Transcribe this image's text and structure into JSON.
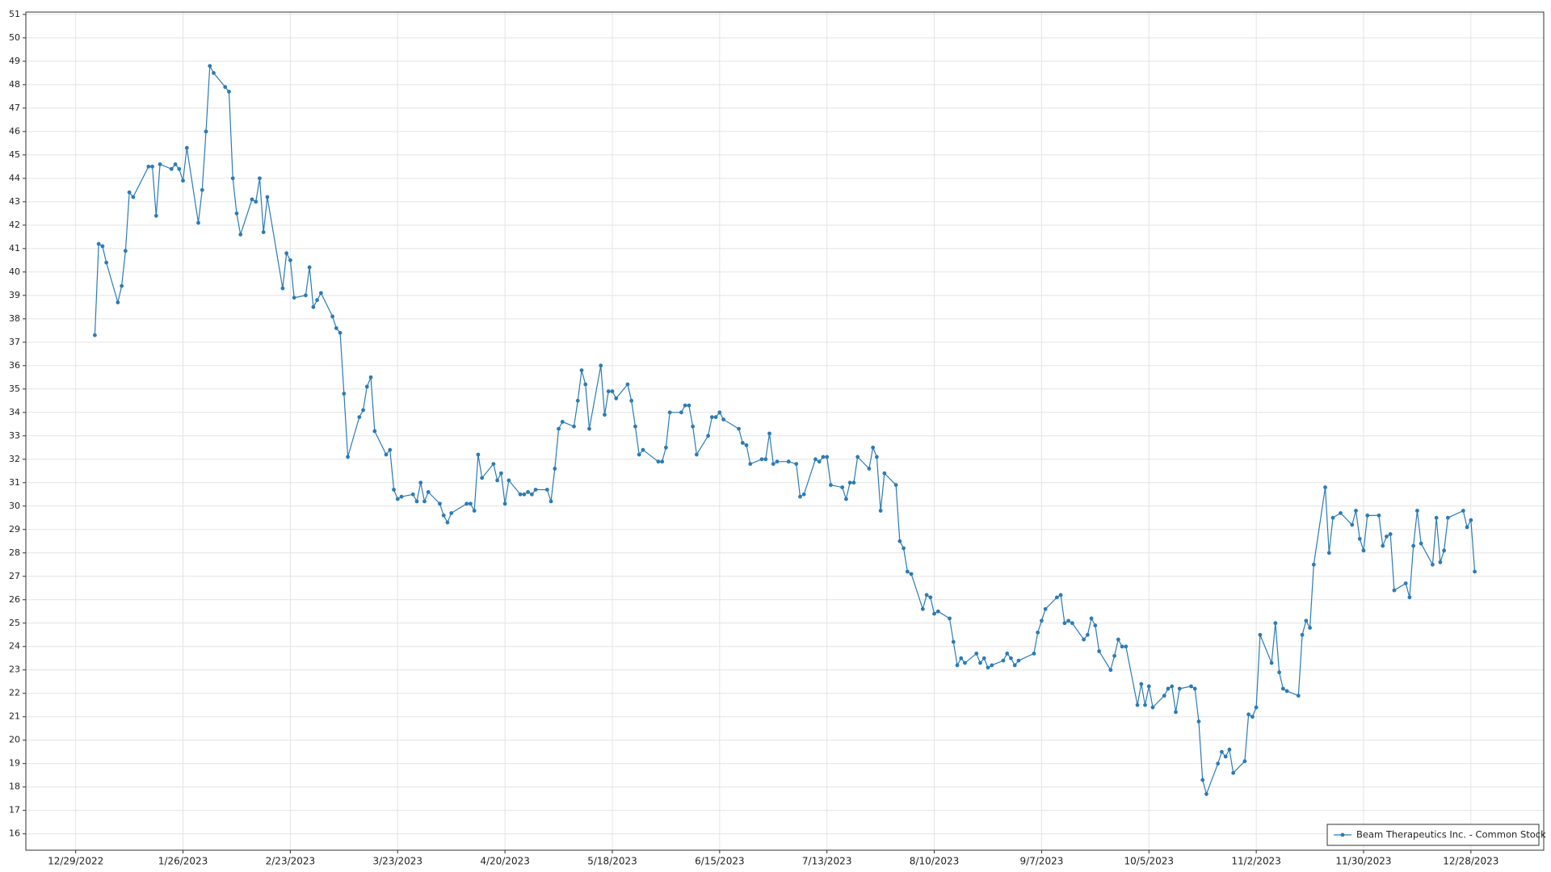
{
  "chart_data": {
    "type": "line",
    "x": [
      "2023-01-03",
      "2023-01-04",
      "2023-01-05",
      "2023-01-06",
      "2023-01-09",
      "2023-01-10",
      "2023-01-11",
      "2023-01-12",
      "2023-01-13",
      "2023-01-17",
      "2023-01-18",
      "2023-01-19",
      "2023-01-20",
      "2023-01-23",
      "2023-01-24",
      "2023-01-25",
      "2023-01-26",
      "2023-01-27",
      "2023-01-30",
      "2023-01-31",
      "2023-02-01",
      "2023-02-02",
      "2023-02-03",
      "2023-02-06",
      "2023-02-07",
      "2023-02-08",
      "2023-02-09",
      "2023-02-10",
      "2023-02-13",
      "2023-02-14",
      "2023-02-15",
      "2023-02-16",
      "2023-02-17",
      "2023-02-21",
      "2023-02-22",
      "2023-02-23",
      "2023-02-24",
      "2023-02-27",
      "2023-02-28",
      "2023-03-01",
      "2023-03-02",
      "2023-03-03",
      "2023-03-06",
      "2023-03-07",
      "2023-03-08",
      "2023-03-09",
      "2023-03-10",
      "2023-03-13",
      "2023-03-14",
      "2023-03-15",
      "2023-03-16",
      "2023-03-17",
      "2023-03-20",
      "2023-03-21",
      "2023-03-22",
      "2023-03-23",
      "2023-03-24",
      "2023-03-27",
      "2023-03-28",
      "2023-03-29",
      "2023-03-30",
      "2023-03-31",
      "2023-04-03",
      "2023-04-04",
      "2023-04-05",
      "2023-04-06",
      "2023-04-10",
      "2023-04-11",
      "2023-04-12",
      "2023-04-13",
      "2023-04-14",
      "2023-04-17",
      "2023-04-18",
      "2023-04-19",
      "2023-04-20",
      "2023-04-21",
      "2023-04-24",
      "2023-04-25",
      "2023-04-26",
      "2023-04-27",
      "2023-04-28",
      "2023-05-01",
      "2023-05-02",
      "2023-05-03",
      "2023-05-04",
      "2023-05-05",
      "2023-05-08",
      "2023-05-09",
      "2023-05-10",
      "2023-05-11",
      "2023-05-12",
      "2023-05-15",
      "2023-05-16",
      "2023-05-17",
      "2023-05-18",
      "2023-05-19",
      "2023-05-22",
      "2023-05-23",
      "2023-05-24",
      "2023-05-25",
      "2023-05-26",
      "2023-05-30",
      "2023-05-31",
      "2023-06-01",
      "2023-06-02",
      "2023-06-05",
      "2023-06-06",
      "2023-06-07",
      "2023-06-08",
      "2023-06-09",
      "2023-06-12",
      "2023-06-13",
      "2023-06-14",
      "2023-06-15",
      "2023-06-16",
      "2023-06-20",
      "2023-06-21",
      "2023-06-22",
      "2023-06-23",
      "2023-06-26",
      "2023-06-27",
      "2023-06-28",
      "2023-06-29",
      "2023-06-30",
      "2023-07-03",
      "2023-07-05",
      "2023-07-06",
      "2023-07-07",
      "2023-07-10",
      "2023-07-11",
      "2023-07-12",
      "2023-07-13",
      "2023-07-14",
      "2023-07-17",
      "2023-07-18",
      "2023-07-19",
      "2023-07-20",
      "2023-07-21",
      "2023-07-24",
      "2023-07-25",
      "2023-07-26",
      "2023-07-27",
      "2023-07-28",
      "2023-07-31",
      "2023-08-01",
      "2023-08-02",
      "2023-08-03",
      "2023-08-04",
      "2023-08-07",
      "2023-08-08",
      "2023-08-09",
      "2023-08-10",
      "2023-08-11",
      "2023-08-14",
      "2023-08-15",
      "2023-08-16",
      "2023-08-17",
      "2023-08-18",
      "2023-08-21",
      "2023-08-22",
      "2023-08-23",
      "2023-08-24",
      "2023-08-25",
      "2023-08-28",
      "2023-08-29",
      "2023-08-30",
      "2023-08-31",
      "2023-09-01",
      "2023-09-05",
      "2023-09-06",
      "2023-09-07",
      "2023-09-08",
      "2023-09-11",
      "2023-09-12",
      "2023-09-13",
      "2023-09-14",
      "2023-09-15",
      "2023-09-18",
      "2023-09-19",
      "2023-09-20",
      "2023-09-21",
      "2023-09-22",
      "2023-09-25",
      "2023-09-26",
      "2023-09-27",
      "2023-09-28",
      "2023-09-29",
      "2023-10-02",
      "2023-10-03",
      "2023-10-04",
      "2023-10-05",
      "2023-10-06",
      "2023-10-09",
      "2023-10-10",
      "2023-10-11",
      "2023-10-12",
      "2023-10-13",
      "2023-10-16",
      "2023-10-17",
      "2023-10-18",
      "2023-10-19",
      "2023-10-20",
      "2023-10-23",
      "2023-10-24",
      "2023-10-25",
      "2023-10-26",
      "2023-10-27",
      "2023-10-30",
      "2023-10-31",
      "2023-11-01",
      "2023-11-02",
      "2023-11-03",
      "2023-11-06",
      "2023-11-07",
      "2023-11-08",
      "2023-11-09",
      "2023-11-10",
      "2023-11-13",
      "2023-11-14",
      "2023-11-15",
      "2023-11-16",
      "2023-11-17",
      "2023-11-20",
      "2023-11-21",
      "2023-11-22",
      "2023-11-24",
      "2023-11-27",
      "2023-11-28",
      "2023-11-29",
      "2023-11-30",
      "2023-12-01",
      "2023-12-04",
      "2023-12-05",
      "2023-12-06",
      "2023-12-07",
      "2023-12-08",
      "2023-12-11",
      "2023-12-12",
      "2023-12-13",
      "2023-12-14",
      "2023-12-15",
      "2023-12-18",
      "2023-12-19",
      "2023-12-20",
      "2023-12-21",
      "2023-12-22",
      "2023-12-26",
      "2023-12-27",
      "2023-12-28",
      "2023-12-29"
    ],
    "series": [
      {
        "name": "Beam Therapeutics Inc. - Common Stock",
        "color": "#2b7bb5",
        "values": [
          37.3,
          41.2,
          41.1,
          40.4,
          38.7,
          39.4,
          40.9,
          43.4,
          43.2,
          44.5,
          44.5,
          42.4,
          44.6,
          44.4,
          44.6,
          44.4,
          43.9,
          45.3,
          42.1,
          43.5,
          46.0,
          48.8,
          48.5,
          47.9,
          47.7,
          44.0,
          42.5,
          41.6,
          43.1,
          43.0,
          44.0,
          41.7,
          43.2,
          39.3,
          40.8,
          40.5,
          38.9,
          39.0,
          40.2,
          38.5,
          38.8,
          39.1,
          38.1,
          37.6,
          37.4,
          34.8,
          32.1,
          33.8,
          34.1,
          35.1,
          35.5,
          33.2,
          32.2,
          32.4,
          30.7,
          30.3,
          30.4,
          30.5,
          30.2,
          31.0,
          30.2,
          30.6,
          30.1,
          29.6,
          29.3,
          29.7,
          30.1,
          30.1,
          29.8,
          32.2,
          31.2,
          31.8,
          31.1,
          31.4,
          30.1,
          31.1,
          30.5,
          30.5,
          30.6,
          30.5,
          30.7,
          30.7,
          30.2,
          31.6,
          33.3,
          33.6,
          33.4,
          34.5,
          35.8,
          35.2,
          33.3,
          36.0,
          33.9,
          34.9,
          34.9,
          34.6,
          35.2,
          34.5,
          33.4,
          32.2,
          32.4,
          31.9,
          31.9,
          32.5,
          34.0,
          34.0,
          34.3,
          34.3,
          33.4,
          32.2,
          33.0,
          33.8,
          33.8,
          34.0,
          33.7,
          33.3,
          32.7,
          32.6,
          31.8,
          32.0,
          32.0,
          33.1,
          31.8,
          31.9,
          31.9,
          31.8,
          30.4,
          30.5,
          32.0,
          31.9,
          32.1,
          32.1,
          30.9,
          30.8,
          30.3,
          31.0,
          31.0,
          32.1,
          31.6,
          32.5,
          32.1,
          29.8,
          31.4,
          30.9,
          28.5,
          28.2,
          27.2,
          27.1,
          25.6,
          26.2,
          26.1,
          25.4,
          25.5,
          25.2,
          24.2,
          23.2,
          23.5,
          23.3,
          23.7,
          23.3,
          23.5,
          23.1,
          23.2,
          23.4,
          23.7,
          23.5,
          23.2,
          23.4,
          23.7,
          24.6,
          25.1,
          25.6,
          26.1,
          26.2,
          25.0,
          25.1,
          25.0,
          24.3,
          24.5,
          25.2,
          24.9,
          23.8,
          23.0,
          23.6,
          24.3,
          24.0,
          24.0,
          21.5,
          22.4,
          21.5,
          22.3,
          21.4,
          21.9,
          22.2,
          22.3,
          21.2,
          22.2,
          22.3,
          22.2,
          20.8,
          18.3,
          17.7,
          19.0,
          19.5,
          19.3,
          19.6,
          18.6,
          19.1,
          21.1,
          21.0,
          21.4,
          24.5,
          23.3,
          25.0,
          22.9,
          22.2,
          22.1,
          21.9,
          24.5,
          25.1,
          24.8,
          27.5,
          30.8,
          28.0,
          29.5,
          29.7,
          29.2,
          29.8,
          28.6,
          28.1,
          29.6,
          29.6,
          28.3,
          28.7,
          28.8,
          26.4,
          26.7,
          26.1,
          28.3,
          29.8,
          28.4,
          27.5,
          29.5,
          27.6,
          28.1,
          29.5,
          29.8,
          29.1,
          29.4,
          27.2
        ]
      }
    ],
    "xlim": [
      "2022-12-16",
      "2024-01-16"
    ],
    "xticks": [
      {
        "value": "2022-12-29",
        "label": "12/29/2022"
      },
      {
        "value": "2023-01-26",
        "label": "1/26/2023"
      },
      {
        "value": "2023-02-23",
        "label": "2/23/2023"
      },
      {
        "value": "2023-03-23",
        "label": "3/23/2023"
      },
      {
        "value": "2023-04-20",
        "label": "4/20/2023"
      },
      {
        "value": "2023-05-18",
        "label": "5/18/2023"
      },
      {
        "value": "2023-06-15",
        "label": "6/15/2023"
      },
      {
        "value": "2023-07-13",
        "label": "7/13/2023"
      },
      {
        "value": "2023-08-10",
        "label": "8/10/2023"
      },
      {
        "value": "2023-09-07",
        "label": "9/7/2023"
      },
      {
        "value": "2023-10-05",
        "label": "10/5/2023"
      },
      {
        "value": "2023-11-02",
        "label": "11/2/2023"
      },
      {
        "value": "2023-11-30",
        "label": "11/30/2023"
      },
      {
        "value": "2023-12-28",
        "label": "12/28/2023"
      }
    ],
    "ylim": [
      15.3,
      51.1
    ],
    "yticks": [
      16,
      17,
      18,
      19,
      20,
      21,
      22,
      23,
      24,
      25,
      26,
      27,
      28,
      29,
      30,
      31,
      32,
      33,
      34,
      35,
      36,
      37,
      38,
      39,
      40,
      41,
      42,
      43,
      44,
      45,
      46,
      47,
      48,
      49,
      50,
      51
    ],
    "grid": true,
    "legend": "lower right"
  }
}
